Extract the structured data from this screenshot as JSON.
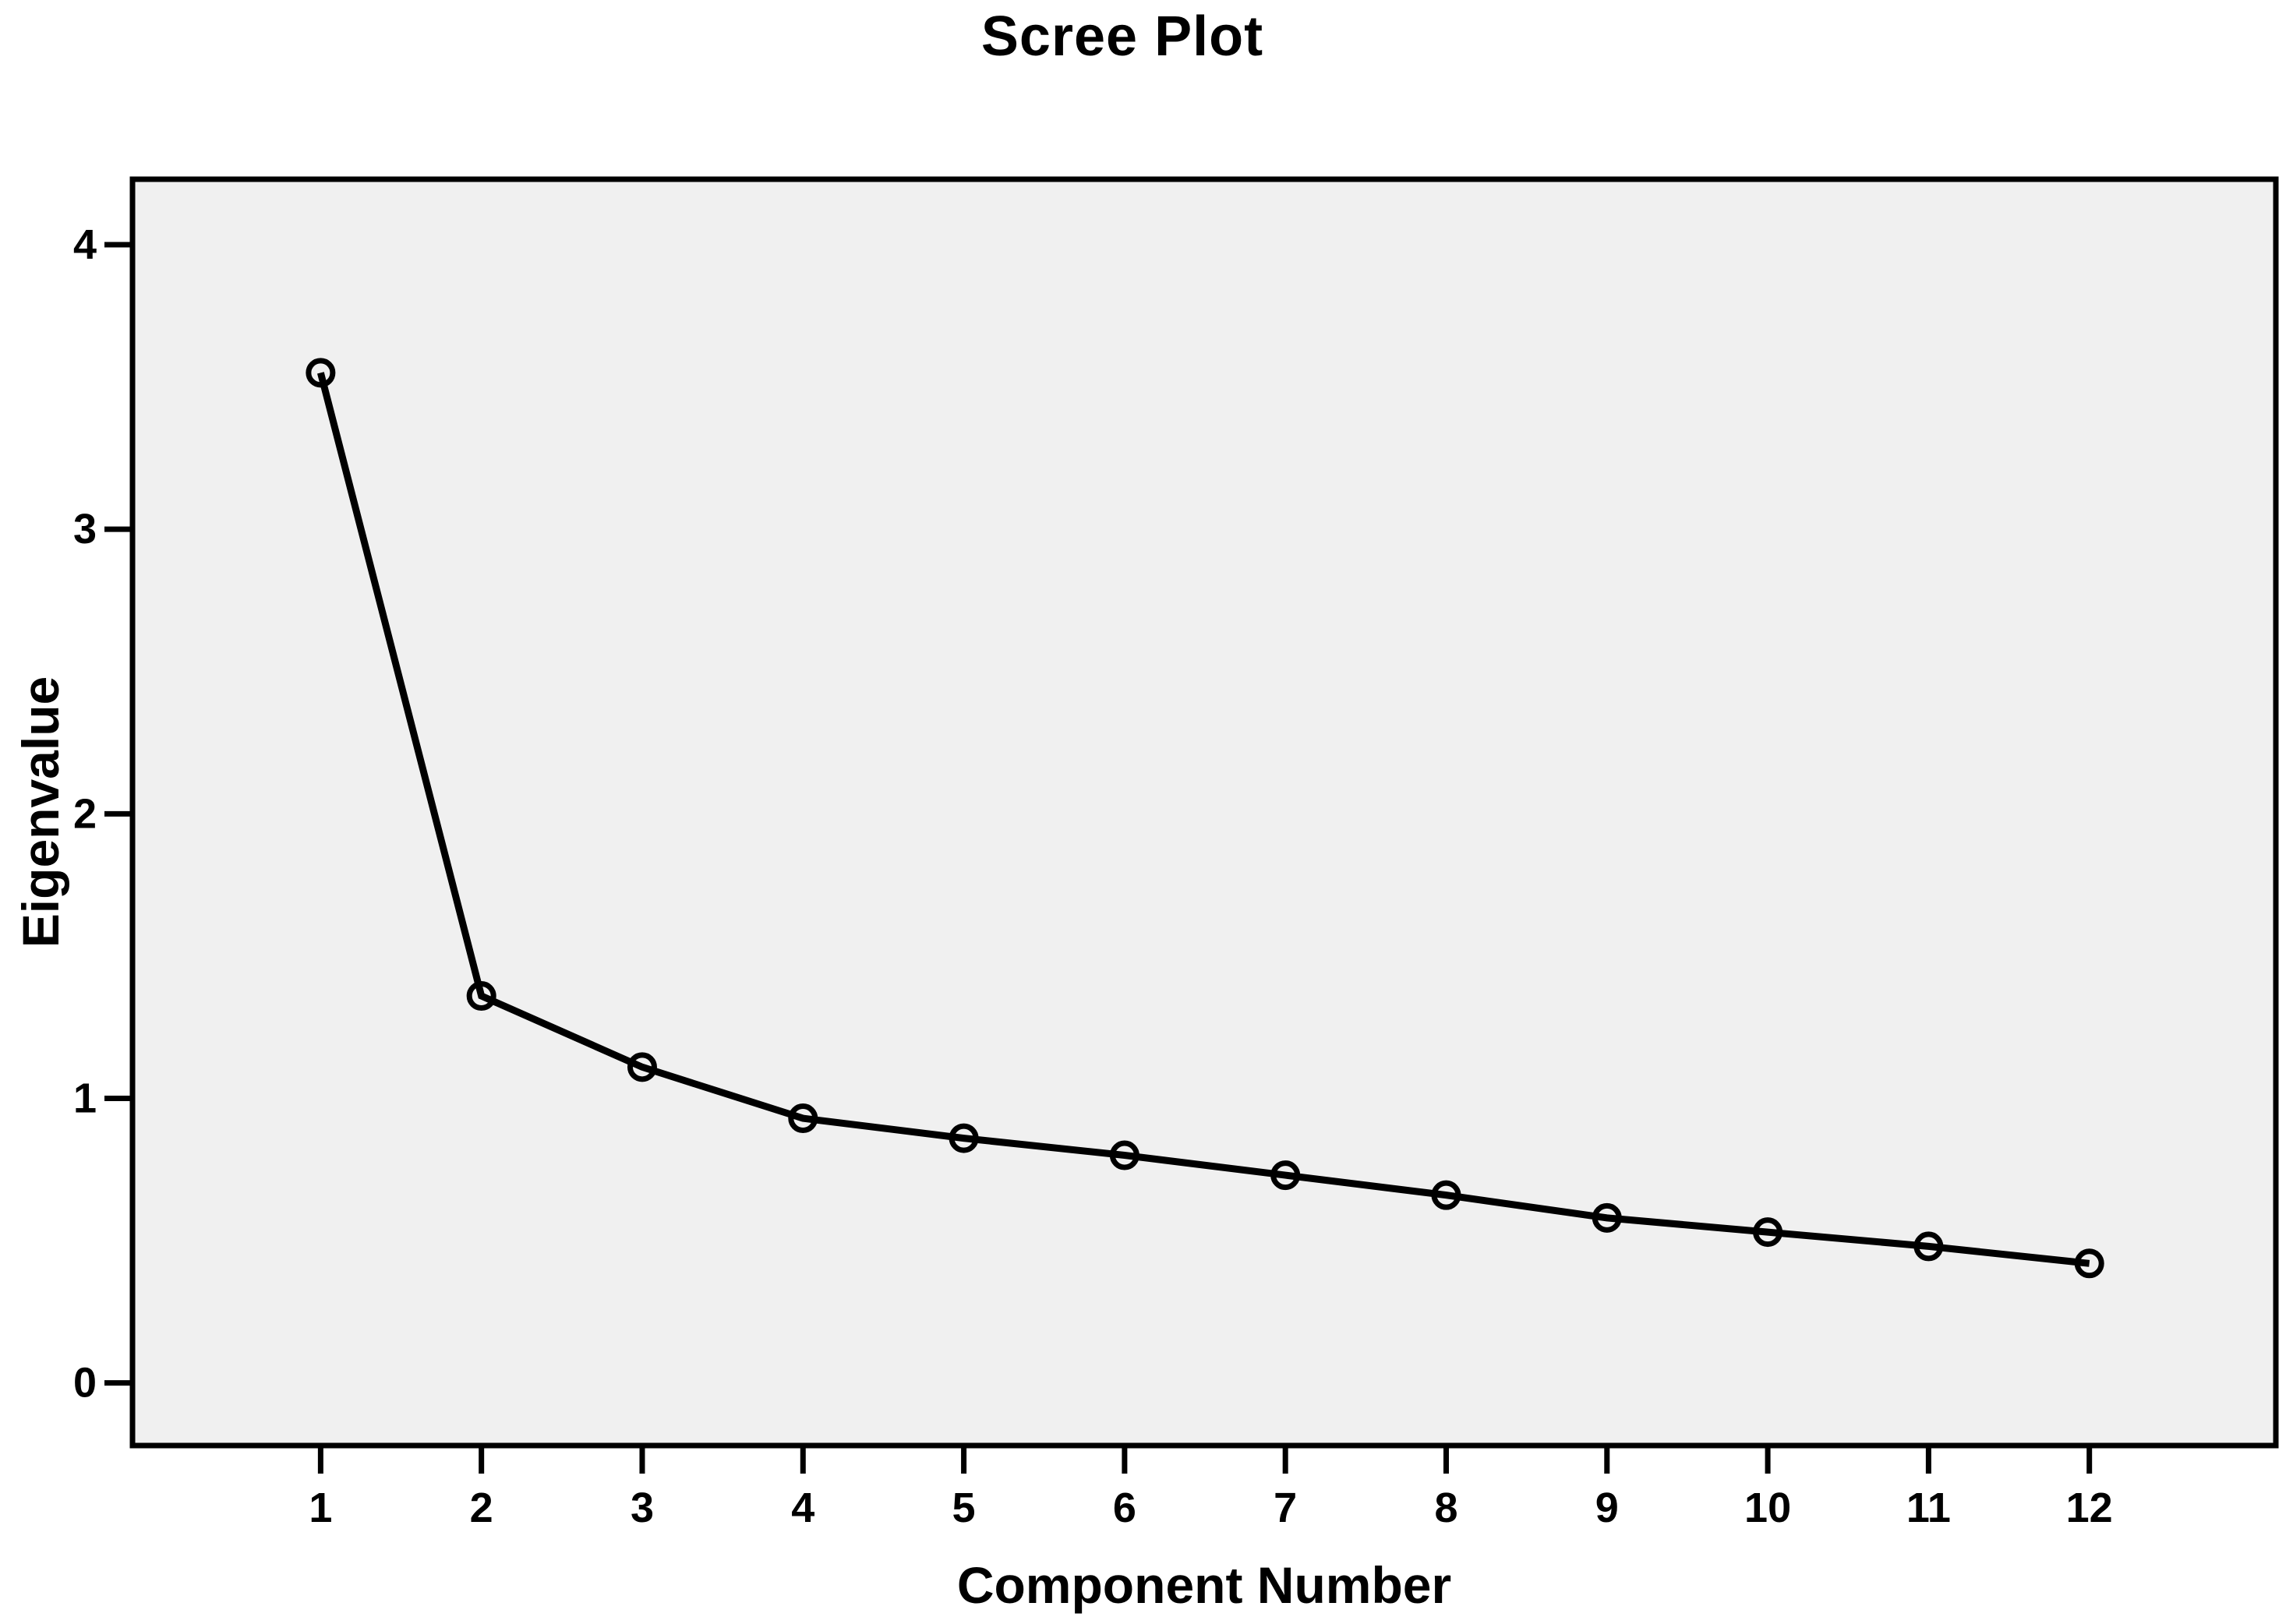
{
  "chart_data": {
    "type": "line",
    "title": "Scree Plot",
    "xlabel": "Component Number",
    "ylabel": "Eigenvalue",
    "x": [
      1,
      2,
      3,
      4,
      5,
      6,
      7,
      8,
      9,
      10,
      11,
      12
    ],
    "values": [
      3.55,
      1.36,
      1.11,
      0.93,
      0.86,
      0.8,
      0.73,
      0.66,
      0.58,
      0.53,
      0.48,
      0.42
    ],
    "series_name": "Eigenvalue",
    "xticks": [
      "1",
      "2",
      "3",
      "4",
      "5",
      "6",
      "7",
      "8",
      "9",
      "10",
      "11",
      "12"
    ],
    "yticks": [
      "0",
      "1",
      "2",
      "3",
      "4"
    ],
    "ytick_values": [
      0,
      1,
      2,
      3,
      4
    ],
    "xlim": [
      -0.17,
      13.16
    ],
    "ylim": [
      -0.22,
      4.23
    ],
    "grid": false,
    "legend_position": "none",
    "marker": "open-circle",
    "line_color": "#000000",
    "axis_color": "#000000",
    "text_color": "#000000",
    "plot_background": "#f0f0f0",
    "page_background": "#ffffff"
  }
}
